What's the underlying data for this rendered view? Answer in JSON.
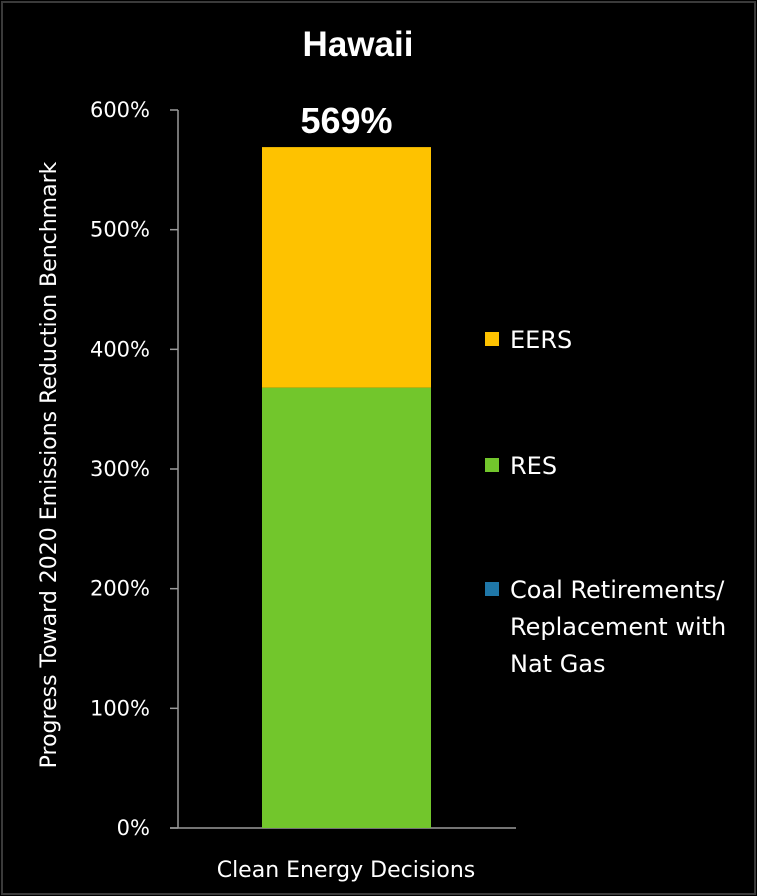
{
  "chart_data": {
    "type": "bar",
    "stacked": true,
    "title": "Hawaii",
    "xlabel": "",
    "ylabel": "Progress Toward 2020 Emissions Reduction Benchmark",
    "categories": [
      "Clean Energy Decisions"
    ],
    "ylim": [
      0,
      600
    ],
    "yticks": [
      "0%",
      "100%",
      "200%",
      "300%",
      "400%",
      "500%",
      "600%"
    ],
    "total_label": "569%",
    "grid": false,
    "legend_position": "right",
    "series": [
      {
        "name": "Coal Retirements/ Replacement with Nat Gas",
        "values": [
          0
        ],
        "color": "#1f77a8"
      },
      {
        "name": "RES",
        "values": [
          368
        ],
        "color": "#72c62c"
      },
      {
        "name": "EERS",
        "values": [
          201
        ],
        "color": "#fec200"
      }
    ],
    "legend": [
      {
        "lines": [
          "EERS"
        ],
        "color": "#fec200"
      },
      {
        "lines": [
          "RES"
        ],
        "color": "#72c62c"
      },
      {
        "lines": [
          "Coal Retirements/",
          "Replacement with",
          "Nat Gas"
        ],
        "color": "#1f77a8"
      }
    ]
  }
}
